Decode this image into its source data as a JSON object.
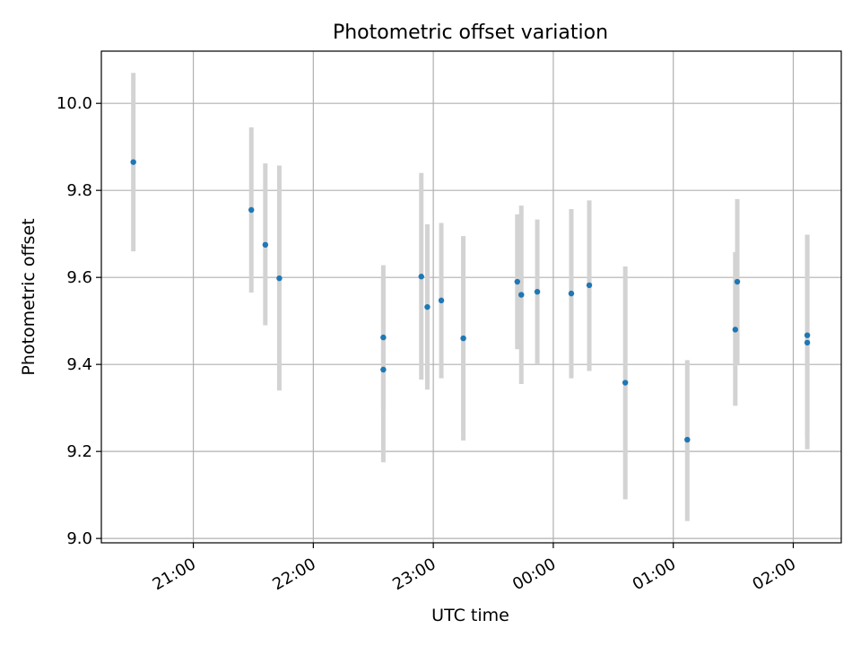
{
  "chart_data": {
    "type": "scatter",
    "title": "Photometric offset variation",
    "xlabel": "UTC time",
    "ylabel": "Photometric offset",
    "x_unit": "UTC time (HH:MM, session spanning midnight)",
    "xlim": [
      "20:14",
      "02:24"
    ],
    "ylim": [
      8.99,
      10.12
    ],
    "x_ticks": [
      "21:00",
      "22:00",
      "23:00",
      "00:00",
      "01:00",
      "02:00"
    ],
    "y_ticks": [
      "9.0",
      "9.2",
      "9.4",
      "9.6",
      "9.8",
      "10.0"
    ],
    "grid": true,
    "legend": "none",
    "colors": {
      "points": "#1f77b4",
      "errorbars": "#d3d3d3",
      "grid": "#b0b0b0"
    },
    "series": [
      {
        "points": [
          {
            "time": "20:30",
            "y": 9.865,
            "ylo": 9.66,
            "yhi": 10.07
          },
          {
            "time": "21:29",
            "y": 9.755,
            "ylo": 9.565,
            "yhi": 9.945
          },
          {
            "time": "21:36",
            "y": 9.675,
            "ylo": 9.49,
            "yhi": 9.862
          },
          {
            "time": "21:43",
            "y": 9.598,
            "ylo": 9.34,
            "yhi": 9.857
          },
          {
            "time": "22:35",
            "y": 9.462,
            "ylo": 9.295,
            "yhi": 9.628
          },
          {
            "time": "22:35",
            "y": 9.388,
            "ylo": 9.175,
            "yhi": 9.6
          },
          {
            "time": "22:54",
            "y": 9.602,
            "ylo": 9.365,
            "yhi": 9.84
          },
          {
            "time": "22:57",
            "y": 9.532,
            "ylo": 9.342,
            "yhi": 9.722
          },
          {
            "time": "23:04",
            "y": 9.547,
            "ylo": 9.368,
            "yhi": 9.725
          },
          {
            "time": "23:15",
            "y": 9.46,
            "ylo": 9.225,
            "yhi": 9.695
          },
          {
            "time": "23:42",
            "y": 9.59,
            "ylo": 9.435,
            "yhi": 9.745
          },
          {
            "time": "23:44",
            "y": 9.56,
            "ylo": 9.355,
            "yhi": 9.765
          },
          {
            "time": "23:52",
            "y": 9.567,
            "ylo": 9.4,
            "yhi": 9.733
          },
          {
            "time": "00:09",
            "y": 9.563,
            "ylo": 9.368,
            "yhi": 9.757
          },
          {
            "time": "00:18",
            "y": 9.582,
            "ylo": 9.385,
            "yhi": 9.777
          },
          {
            "time": "00:36",
            "y": 9.358,
            "ylo": 9.09,
            "yhi": 9.625
          },
          {
            "time": "01:07",
            "y": 9.227,
            "ylo": 9.04,
            "yhi": 9.41
          },
          {
            "time": "01:31",
            "y": 9.48,
            "ylo": 9.305,
            "yhi": 9.658
          },
          {
            "time": "01:32",
            "y": 9.59,
            "ylo": 9.4,
            "yhi": 9.78
          },
          {
            "time": "02:07",
            "y": 9.45,
            "ylo": 9.205,
            "yhi": 9.698
          },
          {
            "time": "02:07",
            "y": 9.467,
            "ylo": 9.235,
            "yhi": 9.698
          }
        ]
      }
    ]
  }
}
